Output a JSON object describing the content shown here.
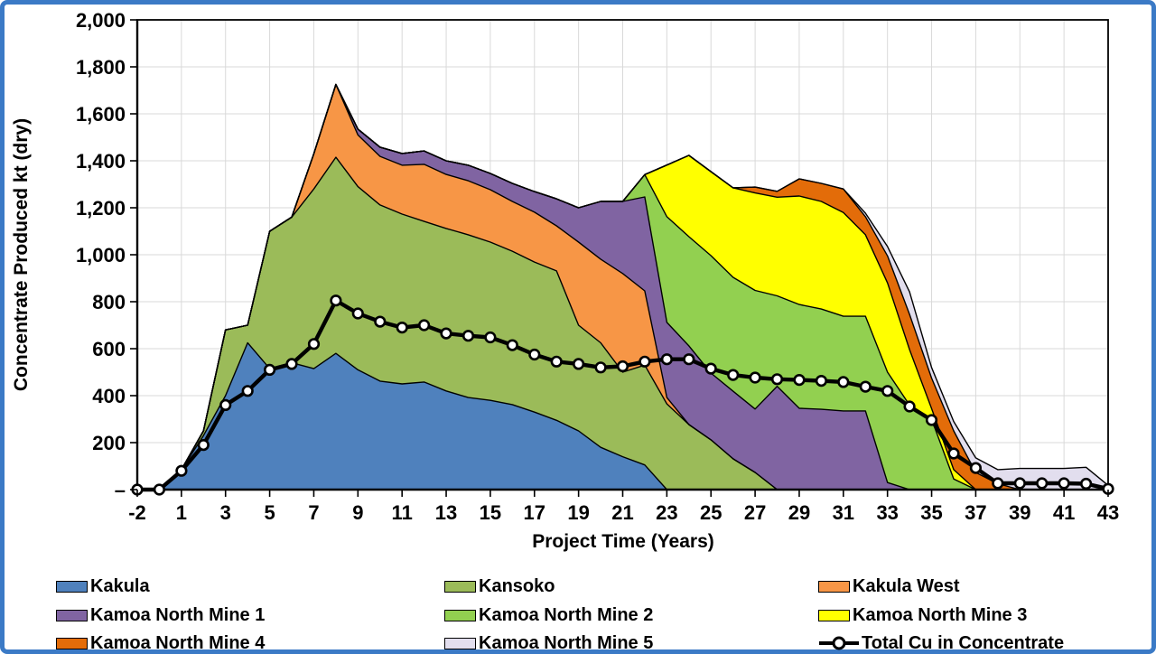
{
  "frame": {
    "border_color": "#3b7ac6",
    "background": "#ffffff"
  },
  "y_axis": {
    "title": "Concentrate Produced kt (dry)",
    "tick_labels": [
      "–",
      "200",
      "400",
      "600",
      "800",
      "1,000",
      "1,200",
      "1,400",
      "1,600",
      "1,800",
      "2,000"
    ],
    "min": 0,
    "max": 2000,
    "step": 200
  },
  "x_axis": {
    "title": "Project Time (Years)",
    "tick_labels": [
      "-2",
      "1",
      "3",
      "5",
      "7",
      "9",
      "11",
      "13",
      "15",
      "17",
      "19",
      "21",
      "23",
      "25",
      "27",
      "29",
      "31",
      "33",
      "35",
      "37",
      "39",
      "41",
      "43"
    ]
  },
  "legend": [
    {
      "label": "Kakula",
      "color": "#4f81bd",
      "type": "area"
    },
    {
      "label": "Kansoko",
      "color": "#9bbb59",
      "type": "area"
    },
    {
      "label": "Kakula West",
      "color": "#f79646",
      "type": "area"
    },
    {
      "label": "Kamoa North Mine 1",
      "color": "#8064a2",
      "type": "area"
    },
    {
      "label": "Kamoa North Mine 2",
      "color": "#92d050",
      "type": "area"
    },
    {
      "label": "Kamoa North Mine 3",
      "color": "#ffff00",
      "type": "area"
    },
    {
      "label": "Kamoa North Mine 4",
      "color": "#e36c09",
      "type": "area"
    },
    {
      "label": "Kamoa North Mine 5",
      "color": "#e2deee",
      "type": "area"
    },
    {
      "label": "Total Cu in Concentrate",
      "color": "#000000",
      "type": "line"
    }
  ],
  "chart_data": {
    "type": "area",
    "stacked": true,
    "title": "",
    "xlabel": "Project Time (Years)",
    "ylabel": "Concentrate Produced kt (dry)",
    "ylim": [
      0,
      2000
    ],
    "grid": true,
    "legend_position": "bottom",
    "categories": [
      -2,
      -1,
      1,
      2,
      3,
      4,
      5,
      6,
      7,
      8,
      9,
      10,
      11,
      12,
      13,
      14,
      15,
      16,
      17,
      18,
      19,
      20,
      21,
      22,
      23,
      24,
      25,
      26,
      27,
      28,
      29,
      30,
      31,
      32,
      33,
      34,
      35,
      36,
      37,
      38,
      39,
      40,
      41,
      42,
      43
    ],
    "series": [
      {
        "name": "Kakula",
        "color": "#4f81bd",
        "values": [
          0,
          0,
          85,
          230,
          400,
          625,
          515,
          540,
          515,
          580,
          510,
          462,
          450,
          458,
          420,
          392,
          380,
          362,
          330,
          295,
          250,
          180,
          140,
          105,
          0,
          0,
          0,
          0,
          0,
          0,
          0,
          0,
          0,
          0,
          0,
          0,
          0,
          0,
          0,
          0,
          0,
          0,
          0,
          0,
          0
        ]
      },
      {
        "name": "Kansoko",
        "color": "#9bbb59",
        "values": [
          0,
          0,
          0,
          20,
          280,
          75,
          585,
          620,
          765,
          835,
          780,
          750,
          723,
          684,
          692,
          693,
          674,
          653,
          639,
          636,
          450,
          445,
          360,
          425,
          365,
          277,
          212,
          131,
          73,
          0,
          0,
          0,
          0,
          0,
          0,
          0,
          0,
          0,
          0,
          0,
          0,
          0,
          0,
          0,
          0
        ]
      },
      {
        "name": "Kakula West",
        "color": "#f79646",
        "values": [
          0,
          0,
          0,
          0,
          0,
          0,
          0,
          0,
          150,
          310,
          220,
          207,
          208,
          243,
          230,
          230,
          223,
          212,
          212,
          192,
          354,
          356,
          420,
          316,
          27,
          0,
          0,
          0,
          0,
          0,
          0,
          0,
          0,
          0,
          0,
          0,
          0,
          0,
          0,
          0,
          0,
          0,
          0,
          0,
          0
        ]
      },
      {
        "name": "Kamoa North Mine 1",
        "color": "#8064a2",
        "values": [
          0,
          0,
          0,
          0,
          0,
          0,
          0,
          0,
          0,
          0,
          25,
          39,
          50,
          57,
          58,
          66,
          69,
          77,
          88,
          115,
          146,
          246,
          307,
          400,
          320,
          335,
          284,
          288,
          270,
          440,
          346,
          342,
          335,
          335,
          30,
          0,
          0,
          0,
          0,
          0,
          0,
          0,
          0,
          0,
          0
        ]
      },
      {
        "name": "Kamoa North Mine 2",
        "color": "#92d050",
        "values": [
          0,
          0,
          0,
          0,
          0,
          0,
          0,
          0,
          0,
          0,
          0,
          0,
          0,
          0,
          0,
          0,
          0,
          0,
          0,
          0,
          0,
          0,
          0,
          95,
          450,
          465,
          500,
          485,
          505,
          385,
          442,
          427,
          403,
          403,
          470,
          360,
          300,
          45,
          0,
          0,
          0,
          0,
          0,
          0,
          0
        ]
      },
      {
        "name": "Kamoa North Mine 3",
        "color": "#ffff00",
        "values": [
          0,
          0,
          0,
          0,
          0,
          0,
          0,
          0,
          0,
          0,
          0,
          0,
          0,
          0,
          0,
          0,
          0,
          0,
          0,
          0,
          0,
          0,
          0,
          0,
          220,
          346,
          358,
          381,
          415,
          420,
          462,
          458,
          442,
          347,
          380,
          236,
          45,
          40,
          0,
          0,
          0,
          0,
          0,
          0,
          0
        ]
      },
      {
        "name": "Kamoa North Mine 4",
        "color": "#e36c09",
        "values": [
          0,
          0,
          0,
          0,
          0,
          0,
          0,
          0,
          0,
          0,
          0,
          0,
          0,
          0,
          0,
          0,
          0,
          0,
          0,
          0,
          0,
          0,
          0,
          0,
          0,
          0,
          0,
          0,
          25,
          25,
          73,
          77,
          100,
          77,
          115,
          150,
          130,
          165,
          73,
          25,
          0,
          0,
          0,
          0,
          0
        ]
      },
      {
        "name": "Kamoa North Mine 5",
        "color": "#e2deee",
        "values": [
          0,
          0,
          0,
          0,
          0,
          0,
          0,
          0,
          0,
          0,
          0,
          0,
          0,
          0,
          0,
          0,
          0,
          0,
          0,
          0,
          0,
          0,
          0,
          0,
          0,
          0,
          0,
          0,
          0,
          0,
          0,
          0,
          0,
          15,
          40,
          96,
          45,
          40,
          62,
          60,
          90,
          90,
          90,
          95,
          18
        ]
      }
    ],
    "line_series": {
      "name": "Total Cu in Concentrate",
      "color": "#000000",
      "marker": "circle",
      "values": [
        0,
        0,
        80,
        190,
        360,
        420,
        510,
        535,
        620,
        805,
        750,
        715,
        690,
        700,
        665,
        655,
        648,
        615,
        575,
        545,
        535,
        520,
        525,
        545,
        555,
        555,
        515,
        488,
        477,
        470,
        467,
        463,
        458,
        438,
        420,
        354,
        296,
        154,
        92,
        27,
        27,
        27,
        27,
        25,
        3
      ]
    }
  }
}
